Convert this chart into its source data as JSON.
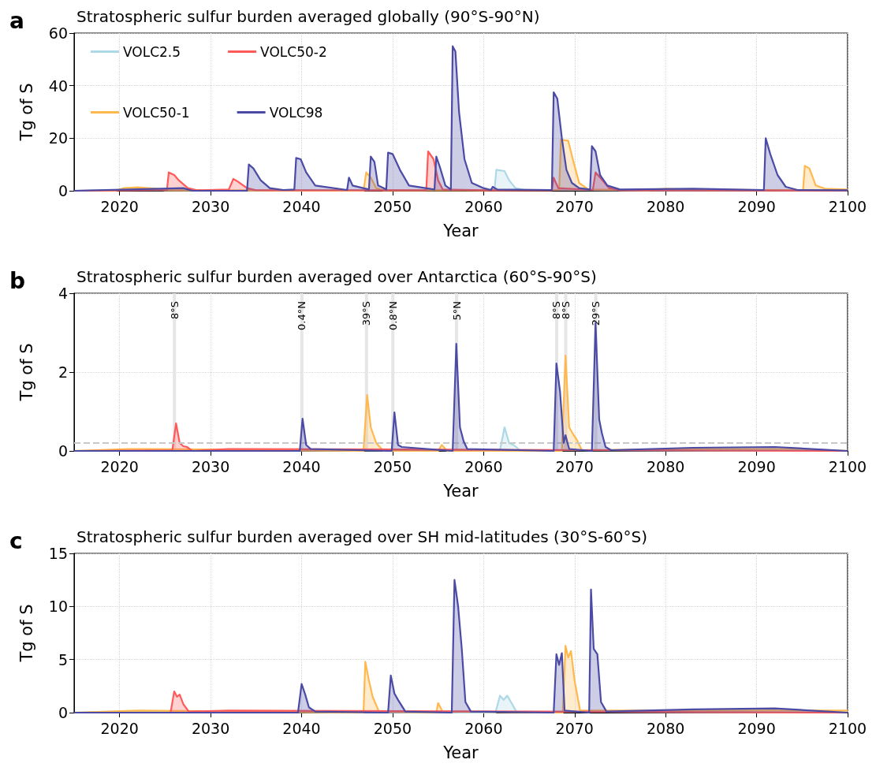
{
  "chart_data": [
    {
      "type": "area",
      "title": "Stratospheric sulfur burden averaged globally (90°S-90°N)",
      "xlabel": "Year",
      "ylabel": "Tg of S",
      "annotations": [
        "a"
      ],
      "xlim": [
        2015,
        2100
      ],
      "xticks": [
        2020,
        2030,
        2040,
        2050,
        2060,
        2070,
        2080,
        2090,
        2100
      ],
      "ylim": [
        0,
        60
      ],
      "yticks": [
        0,
        20,
        40,
        60
      ],
      "grid": true,
      "legend": "top left",
      "series": [
        {
          "name": "VOLC2.5",
          "color": "#add8e6",
          "x": [
            2015,
            2020,
            2022,
            2030,
            2040,
            2050,
            2060,
            2061.2,
            2061.4,
            2062.3,
            2062.8,
            2063.5,
            2064.5,
            2070,
            2080,
            2090,
            2100
          ],
          "values": [
            0,
            0.3,
            0.3,
            0.2,
            0.2,
            0.3,
            0.3,
            0.5,
            8,
            7.5,
            4,
            1,
            0.3,
            0.3,
            0.2,
            0.2,
            0.2
          ]
        },
        {
          "name": "VOLC50-1",
          "color": "#ffb84d",
          "x": [
            2015,
            2019.5,
            2020.5,
            2022,
            2024,
            2025,
            2046.8,
            2047.1,
            2047.6,
            2048.2,
            2049,
            2060,
            2068.3,
            2068.5,
            2069.3,
            2069.8,
            2070.5,
            2071.5,
            2078,
            2080,
            2082,
            2090,
            2095.1,
            2095.3,
            2095.8,
            2096.5,
            2097.5,
            2100
          ],
          "values": [
            0,
            0,
            1,
            1.3,
            0.8,
            0.2,
            0,
            7,
            5,
            1,
            0.2,
            0.2,
            0.3,
            19.5,
            19,
            12,
            3,
            0.5,
            0.2,
            0.8,
            0.5,
            0.3,
            0.3,
            9.5,
            8.5,
            2,
            0.8,
            0.5
          ]
        },
        {
          "name": "VOLC50-2",
          "color": "#ff5a5a",
          "x": [
            2015,
            2025.2,
            2025.4,
            2026,
            2026.5,
            2027.5,
            2028.5,
            2032,
            2032.5,
            2033,
            2034,
            2035,
            2045,
            2053.7,
            2053.9,
            2054.5,
            2055,
            2055.5,
            2060,
            2067.5,
            2067.7,
            2068.2,
            2072,
            2072.3,
            2072.8,
            2073.8,
            2075,
            2100
          ],
          "values": [
            0,
            0.3,
            7,
            6,
            4,
            1,
            0.2,
            0.5,
            4.5,
            3.5,
            1,
            0.2,
            0.2,
            0.2,
            15,
            12,
            4,
            0.5,
            0.2,
            0.2,
            5,
            1,
            0.3,
            7,
            5,
            1,
            0.2,
            0.1
          ]
        },
        {
          "name": "VOLC98",
          "color": "#4b4ba6",
          "x": [
            2015,
            2027,
            2028,
            2034,
            2034.2,
            2034.7,
            2035.5,
            2036.5,
            2038,
            2039.2,
            2039.4,
            2039.9,
            2040.5,
            2041.5,
            2045,
            2045.2,
            2045.6,
            2047.4,
            2047.6,
            2048,
            2048.4,
            2049.3,
            2049.5,
            2050,
            2050.8,
            2051.8,
            2054.6,
            2054.8,
            2055.2,
            2055.8,
            2056.4,
            2056.6,
            2056.9,
            2057.3,
            2057.9,
            2058.7,
            2060,
            2060.8,
            2061,
            2061.5,
            2067.5,
            2067.7,
            2068.1,
            2068.6,
            2069.1,
            2069.7,
            2070.5,
            2071.7,
            2071.9,
            2072.3,
            2072.8,
            2073.6,
            2075,
            2083,
            2090.8,
            2091,
            2091.5,
            2092.3,
            2093.2,
            2094.5,
            2100
          ],
          "values": [
            0,
            1,
            0,
            0,
            10,
            8.5,
            4,
            1,
            0.3,
            0.5,
            12.5,
            12,
            7,
            2,
            0.3,
            5,
            2,
            0.5,
            13,
            11,
            2,
            0.5,
            14.5,
            14,
            8,
            2,
            0.5,
            13,
            9,
            2,
            0.5,
            55,
            53,
            30,
            12,
            3,
            1,
            0.3,
            1.5,
            0.5,
            0.3,
            37.5,
            35,
            20,
            8,
            3,
            1,
            0.5,
            17,
            15,
            6,
            2,
            0.5,
            0.8,
            0.3,
            20,
            14,
            6,
            1.5,
            0.3,
            0.2
          ]
        }
      ]
    },
    {
      "type": "area",
      "title": "Stratospheric sulfur burden averaged over Antarctica (60°S-90°S)",
      "xlabel": "Year",
      "ylabel": "Tg of S",
      "annotations": [
        "b"
      ],
      "xlim": [
        2015,
        2100
      ],
      "xticks": [
        2020,
        2030,
        2040,
        2050,
        2060,
        2070,
        2080,
        2090,
        2100
      ],
      "ylim": [
        0,
        4
      ],
      "yticks": [
        0,
        2,
        4
      ],
      "grid": true,
      "bands": [
        {
          "axis": "x",
          "from": 2025.85,
          "to": 2026.2,
          "label": "8°S",
          "color": "#e6e6e6"
        },
        {
          "axis": "x",
          "from": 2039.85,
          "to": 2040.2,
          "label": "0.4°N",
          "color": "#e6e6e6"
        },
        {
          "axis": "x",
          "from": 2046.95,
          "to": 2047.3,
          "label": "39°S",
          "color": "#e6e6e6"
        },
        {
          "axis": "x",
          "from": 2049.85,
          "to": 2050.2,
          "label": "0.8°N",
          "color": "#e6e6e6"
        },
        {
          "axis": "x",
          "from": 2056.85,
          "to": 2057.2,
          "label": "5°N",
          "color": "#e6e6e6"
        },
        {
          "axis": "x",
          "from": 2067.85,
          "to": 2068.2,
          "label": "8°S",
          "color": "#e6e6e6"
        },
        {
          "axis": "x",
          "from": 2068.85,
          "to": 2069.2,
          "label": "8°S",
          "color": "#e6e6e6"
        },
        {
          "axis": "x",
          "from": 2072.15,
          "to": 2072.5,
          "label": "29°S",
          "color": "#e6e6e6"
        }
      ],
      "ref_lines": [
        {
          "axis": "y",
          "value": 0.2,
          "color": "#c8c8c8",
          "line_style": "dashed"
        }
      ],
      "series": [
        {
          "color": "#add8e6",
          "x": [
            2015,
            2061.8,
            2062.3,
            2062.8,
            2063.3,
            2064,
            2100
          ],
          "values": [
            0,
            0.02,
            0.6,
            0.2,
            0.15,
            0.02,
            0
          ]
        },
        {
          "color": "#ffb84d",
          "x": [
            2015,
            2021,
            2023,
            2046.8,
            2047.2,
            2047.6,
            2048.2,
            2049,
            2055,
            2055.4,
            2056,
            2068.6,
            2069,
            2069.4,
            2069.9,
            2070.2,
            2070.8,
            2083,
            2095,
            2100
          ],
          "values": [
            0,
            0.05,
            0.05,
            0,
            1.42,
            0.6,
            0.2,
            0,
            0,
            0.15,
            0,
            0,
            2.42,
            0.6,
            0.4,
            0.3,
            0.02,
            0.05,
            0.05,
            0
          ]
        },
        {
          "color": "#ff5a5a",
          "x": [
            2015,
            2025.8,
            2026.2,
            2026.6,
            2027,
            2027.4,
            2028,
            2032,
            2100
          ],
          "values": [
            0,
            0.02,
            0.7,
            0.2,
            0.12,
            0.1,
            0,
            0.05,
            0
          ]
        },
        {
          "color": "#4b4ba6",
          "x": [
            2015,
            2039.8,
            2040.1,
            2040.5,
            2041,
            2049.9,
            2050.2,
            2050.6,
            2051,
            2056.6,
            2057,
            2057.4,
            2057.8,
            2058.2,
            2067.7,
            2068,
            2068.4,
            2068.8,
            2069,
            2069.4,
            2071.9,
            2072.3,
            2072.7,
            2073,
            2073.4,
            2074,
            2083,
            2092,
            2100
          ],
          "values": [
            0,
            0,
            0.82,
            0.15,
            0.05,
            0,
            0.98,
            0.15,
            0.1,
            0,
            2.72,
            0.6,
            0.25,
            0.05,
            0,
            2.22,
            1.5,
            0.2,
            0.4,
            0.05,
            0,
            3.25,
            0.8,
            0.45,
            0.1,
            0.02,
            0.08,
            0.1,
            0
          ]
        }
      ]
    },
    {
      "type": "area",
      "title": "Stratospheric sulfur burden averaged over SH mid-latitudes (30°S-60°S)",
      "xlabel": "Year",
      "ylabel": "Tg of S",
      "annotations": [
        "c"
      ],
      "xlim": [
        2015,
        2100
      ],
      "xticks": [
        2020,
        2030,
        2040,
        2050,
        2060,
        2070,
        2080,
        2090,
        2100
      ],
      "ylim": [
        0,
        15
      ],
      "yticks": [
        0,
        5,
        10,
        15
      ],
      "grid": true,
      "series": [
        {
          "color": "#add8e6",
          "x": [
            2015,
            2021,
            2022,
            2061.3,
            2061.8,
            2062.2,
            2062.6,
            2063,
            2063.6,
            2100
          ],
          "values": [
            0,
            0.15,
            0.1,
            0,
            1.6,
            1.2,
            1.6,
            1,
            0.1,
            0
          ]
        },
        {
          "color": "#ffb84d",
          "x": [
            2015,
            2022,
            2046.8,
            2047,
            2047.4,
            2047.8,
            2048.5,
            2054.8,
            2055,
            2055.5,
            2068.7,
            2069,
            2069.3,
            2069.6,
            2070,
            2070.6,
            2082,
            2100
          ],
          "values": [
            0,
            0.2,
            0,
            4.8,
            3,
            1.5,
            0.1,
            0,
            0.9,
            0.1,
            0,
            6.3,
            5.2,
            5.8,
            3,
            0.2,
            0.2,
            0.2
          ]
        },
        {
          "color": "#ff5a5a",
          "x": [
            2015,
            2025.6,
            2026,
            2026.3,
            2026.6,
            2027,
            2027.6,
            2032,
            2100
          ],
          "values": [
            0,
            0,
            2,
            1.5,
            1.7,
            0.8,
            0.1,
            0.2,
            0
          ]
        },
        {
          "color": "#4b4ba6",
          "x": [
            2015,
            2039.6,
            2040,
            2040.4,
            2040.8,
            2041.5,
            2049.5,
            2049.8,
            2050.2,
            2050.6,
            2051.4,
            2056.5,
            2056.8,
            2057.2,
            2057.6,
            2058,
            2058.6,
            2067.7,
            2068,
            2068.3,
            2068.6,
            2068.9,
            2071.6,
            2071.8,
            2072.1,
            2072.5,
            2072.9,
            2073.5,
            2083,
            2092,
            2100
          ],
          "values": [
            0,
            0,
            2.7,
            1.7,
            0.5,
            0.1,
            0,
            3.5,
            1.8,
            1.2,
            0.1,
            0,
            12.5,
            10,
            6,
            1,
            0.1,
            0,
            5.5,
            4.5,
            5.6,
            0.2,
            0,
            11.6,
            6,
            5.5,
            1,
            0.1,
            0.3,
            0.4,
            0
          ]
        }
      ]
    }
  ]
}
